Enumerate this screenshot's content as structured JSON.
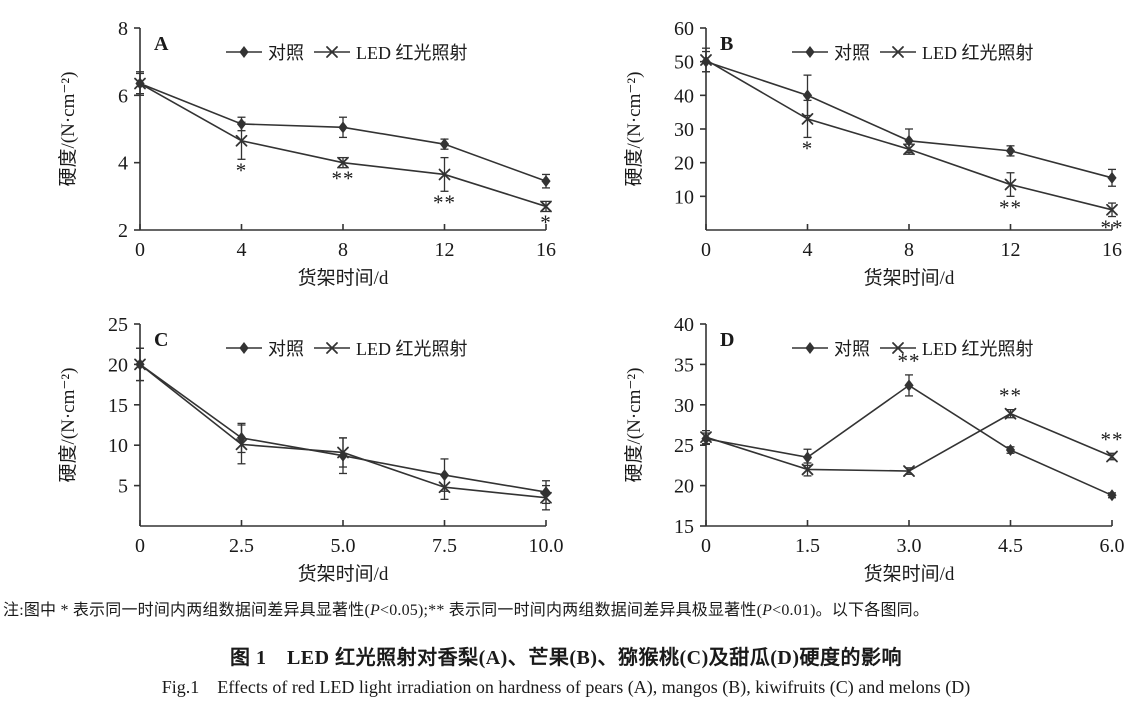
{
  "figure": {
    "background": "#ffffff",
    "note_segments": [
      {
        "text": "注:图中 * 表示同一时间内两组数据间差异具显著性(",
        "italic": false
      },
      {
        "text": "P",
        "italic": true
      },
      {
        "text": "<0.05);** 表示同一时间内两组数据间差异具极显著性(",
        "italic": false
      },
      {
        "text": "P",
        "italic": true
      },
      {
        "text": "<0.01)。以下各图同。",
        "italic": false
      }
    ],
    "title_zh": "图 1　LED 红光照射对香梨(A)、芒果(B)、猕猴桃(C)及甜瓜(D)硬度的影响",
    "title_en": "Fig.1　Effects of red LED light irradiation on hardness of pears (A), mangos (B), kiwifruits (C) and melons (D)"
  },
  "style": {
    "line_color": "#333333",
    "text_color": "#1a1a1a"
  },
  "chart_data": [
    {
      "type": "line",
      "panel_label": "A",
      "xlabel": "货架时间/d",
      "ylabel": "硬度/(N·cm⁻²)",
      "x": [
        0,
        4,
        8,
        12,
        16
      ],
      "x_tick_labels": [
        "0",
        "4",
        "8",
        "12",
        "16"
      ],
      "ylim": [
        2,
        8
      ],
      "yticks": [
        2,
        4,
        6,
        8
      ],
      "legend_position": "top-center",
      "series": [
        {
          "name": "对照",
          "marker": "diamond",
          "values": [
            6.35,
            5.15,
            5.05,
            4.55,
            3.45
          ],
          "errors": [
            0.35,
            0.2,
            0.3,
            0.15,
            0.2
          ]
        },
        {
          "name": "LED 红光照射",
          "marker": "x",
          "values": [
            6.35,
            4.65,
            4.0,
            3.65,
            2.7
          ],
          "errors": [
            0.3,
            0.55,
            0.15,
            0.5,
            0.15
          ]
        }
      ],
      "significance": [
        {
          "x_index": 1,
          "series_index": 1,
          "label": "*",
          "position": "below"
        },
        {
          "x_index": 2,
          "series_index": 1,
          "label": "**",
          "position": "below"
        },
        {
          "x_index": 3,
          "series_index": 1,
          "label": "**",
          "position": "below"
        },
        {
          "x_index": 4,
          "series_index": 1,
          "label": "*",
          "position": "below"
        }
      ]
    },
    {
      "type": "line",
      "panel_label": "B",
      "xlabel": "货架时间/d",
      "ylabel": "硬度/(N·cm⁻²)",
      "x": [
        0,
        4,
        8,
        12,
        16
      ],
      "x_tick_labels": [
        "0",
        "4",
        "8",
        "12",
        "16"
      ],
      "ylim": [
        0,
        60
      ],
      "yticks": [
        10,
        20,
        30,
        40,
        50,
        60
      ],
      "legend_position": "top-center",
      "series": [
        {
          "name": "对照",
          "marker": "diamond",
          "values": [
            50,
            40,
            26.5,
            23.5,
            15.5
          ],
          "errors": [
            3,
            6,
            3.5,
            1.5,
            2.5
          ]
        },
        {
          "name": "LED 红光照射",
          "marker": "x",
          "values": [
            50.5,
            33,
            24,
            13.5,
            6
          ],
          "errors": [
            3.5,
            5.5,
            1.5,
            3.5,
            2
          ]
        }
      ],
      "significance": [
        {
          "x_index": 1,
          "series_index": 1,
          "label": "*",
          "position": "below"
        },
        {
          "x_index": 3,
          "series_index": 1,
          "label": "**",
          "position": "below"
        },
        {
          "x_index": 4,
          "series_index": 1,
          "label": "**",
          "position": "below"
        }
      ]
    },
    {
      "type": "line",
      "panel_label": "C",
      "xlabel": "货架时间/d",
      "ylabel": "硬度/(N·cm⁻²)",
      "x": [
        0,
        2.5,
        5,
        7.5,
        10
      ],
      "x_tick_labels": [
        "0",
        "2.5",
        "5.0",
        "7.5",
        "10.0"
      ],
      "ylim": [
        0,
        25
      ],
      "yticks": [
        5,
        10,
        15,
        20,
        25
      ],
      "legend_position": "top-center",
      "series": [
        {
          "name": "对照",
          "marker": "diamond",
          "values": [
            20,
            10.9,
            8.7,
            6.3,
            4.2
          ],
          "errors": [
            2,
            1.8,
            2.2,
            2,
            1.4
          ]
        },
        {
          "name": "LED 红光照射",
          "marker": "x",
          "values": [
            20,
            10.1,
            9.1,
            4.8,
            3.5
          ],
          "errors": [
            2,
            2.4,
            1.8,
            1.5,
            1.5
          ]
        }
      ],
      "significance": []
    },
    {
      "type": "line",
      "panel_label": "D",
      "xlabel": "货架时间/d",
      "ylabel": "硬度/(N·cm⁻²)",
      "x": [
        0,
        1.5,
        3,
        4.5,
        6
      ],
      "x_tick_labels": [
        "0",
        "1.5",
        "3.0",
        "4.5",
        "6.0"
      ],
      "ylim": [
        15,
        40
      ],
      "yticks": [
        15,
        20,
        25,
        30,
        35,
        40
      ],
      "legend_position": "top-center",
      "series": [
        {
          "name": "对照",
          "marker": "diamond",
          "values": [
            25.8,
            23.5,
            32.4,
            24.4,
            18.8
          ],
          "errors": [
            0.7,
            1,
            1.3,
            0.4,
            0.3
          ]
        },
        {
          "name": "LED 红光照射",
          "marker": "x",
          "values": [
            26,
            22,
            21.8,
            28.9,
            23.6
          ],
          "errors": [
            0.8,
            0.8,
            0.4,
            0.5,
            0.4
          ]
        }
      ],
      "significance": [
        {
          "x_index": 2,
          "series_index": 0,
          "label": "**",
          "position": "above"
        },
        {
          "x_index": 3,
          "series_index": 1,
          "label": "**",
          "position": "above"
        },
        {
          "x_index": 4,
          "series_index": 1,
          "label": "**",
          "position": "above"
        }
      ]
    }
  ]
}
